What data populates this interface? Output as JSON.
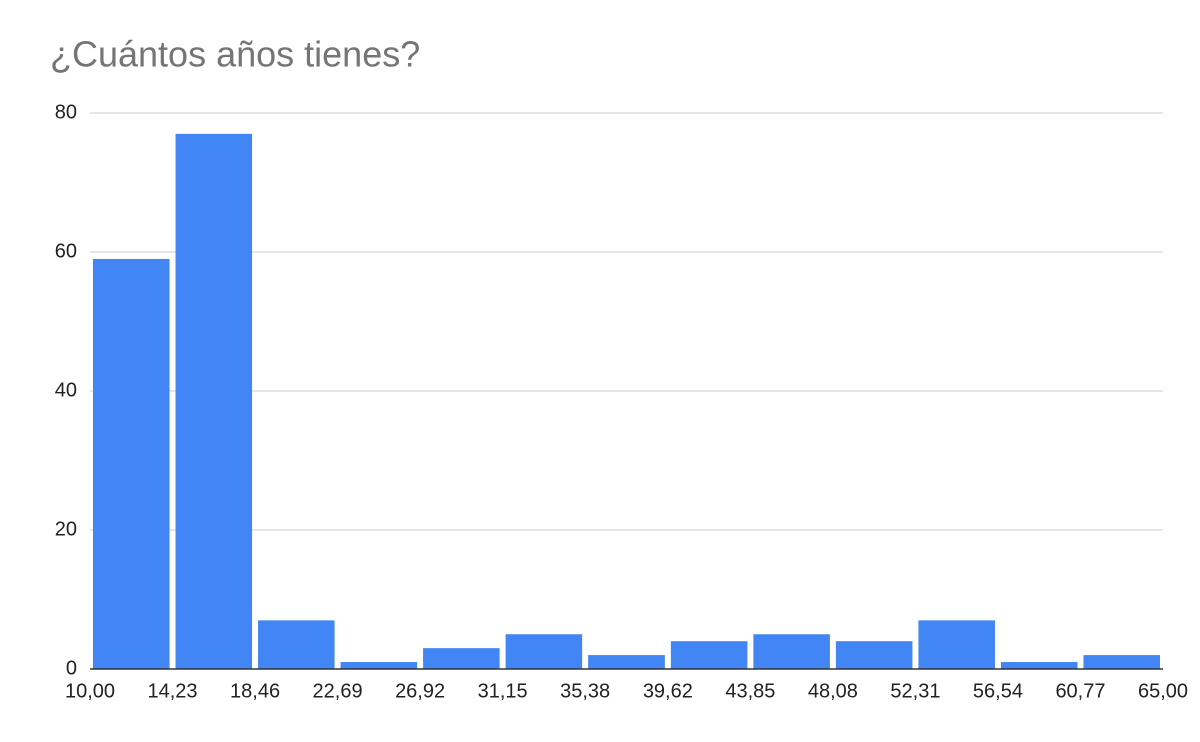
{
  "chart_data": {
    "type": "histogram",
    "title": "¿Cuántos años tienes?",
    "bins": [
      10.0,
      14.23,
      18.46,
      22.69,
      26.92,
      31.15,
      35.38,
      39.62,
      43.85,
      48.08,
      52.31,
      56.54,
      60.77,
      65.0
    ],
    "values": [
      59,
      77,
      7,
      1,
      3,
      5,
      2,
      4,
      5,
      4,
      7,
      1,
      2
    ],
    "color": "#4285f4",
    "xlim": [
      10,
      65
    ],
    "xticks": [
      {
        "value": 10.0,
        "label": "10,00"
      },
      {
        "value": 14.23,
        "label": "14,23"
      },
      {
        "value": 18.46,
        "label": "18,46"
      },
      {
        "value": 22.69,
        "label": "22,69"
      },
      {
        "value": 26.92,
        "label": "26,92"
      },
      {
        "value": 31.15,
        "label": "31,15"
      },
      {
        "value": 35.38,
        "label": "35,38"
      },
      {
        "value": 39.62,
        "label": "39,62"
      },
      {
        "value": 43.85,
        "label": "43,85"
      },
      {
        "value": 48.08,
        "label": "48,08"
      },
      {
        "value": 52.31,
        "label": "52,31"
      },
      {
        "value": 56.54,
        "label": "56,54"
      },
      {
        "value": 60.77,
        "label": "60,77"
      },
      {
        "value": 65.0,
        "label": "65,00"
      }
    ],
    "ylim": [
      0,
      80
    ],
    "yticks": [
      0,
      20,
      40,
      60,
      80
    ],
    "grid": true
  }
}
